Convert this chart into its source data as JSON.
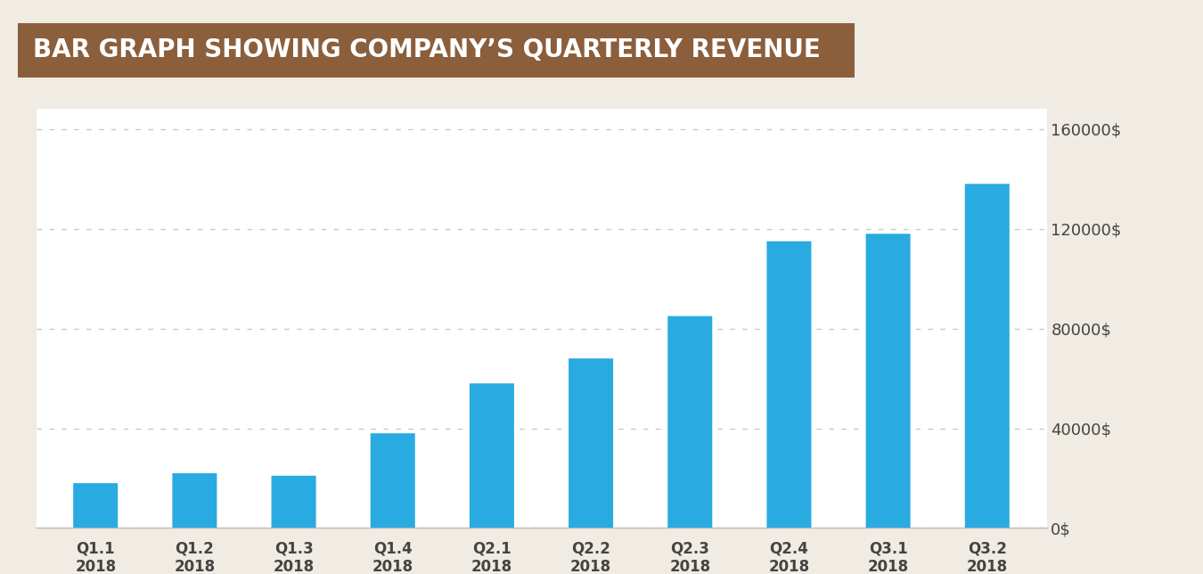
{
  "title": "BAR GRAPH SHOWING COMPANY’S QUARTERLY REVENUE",
  "title_bg_color": "#8B5E3C",
  "title_text_color": "#FFFFFF",
  "background_color": "#F0EBE3",
  "plot_bg_color": "#FFFFFF",
  "categories": [
    "Q1.1\n2018",
    "Q1.2\n2018",
    "Q1.3\n2018",
    "Q1.4\n2018",
    "Q2.1\n2018",
    "Q2.2\n2018",
    "Q2.3\n2018",
    "Q2.4\n2018",
    "Q3.1\n2018",
    "Q3.2\n2018"
  ],
  "values": [
    18000,
    22000,
    21000,
    38000,
    58000,
    68000,
    85000,
    115000,
    118000,
    138000
  ],
  "bar_color": "#29ABE2",
  "yticks": [
    0,
    40000,
    80000,
    120000,
    160000
  ],
  "ytick_labels": [
    "0$",
    "40000$",
    "80000$",
    "120000$",
    "160000$"
  ],
  "ylim": [
    0,
    168000
  ],
  "grid_color": "#C8C8C8",
  "tick_color": "#444444",
  "axis_color": "#BBBBBB",
  "bar_width": 0.45,
  "title_fontsize": 20,
  "tick_fontsize": 12,
  "ytick_fontsize": 13
}
